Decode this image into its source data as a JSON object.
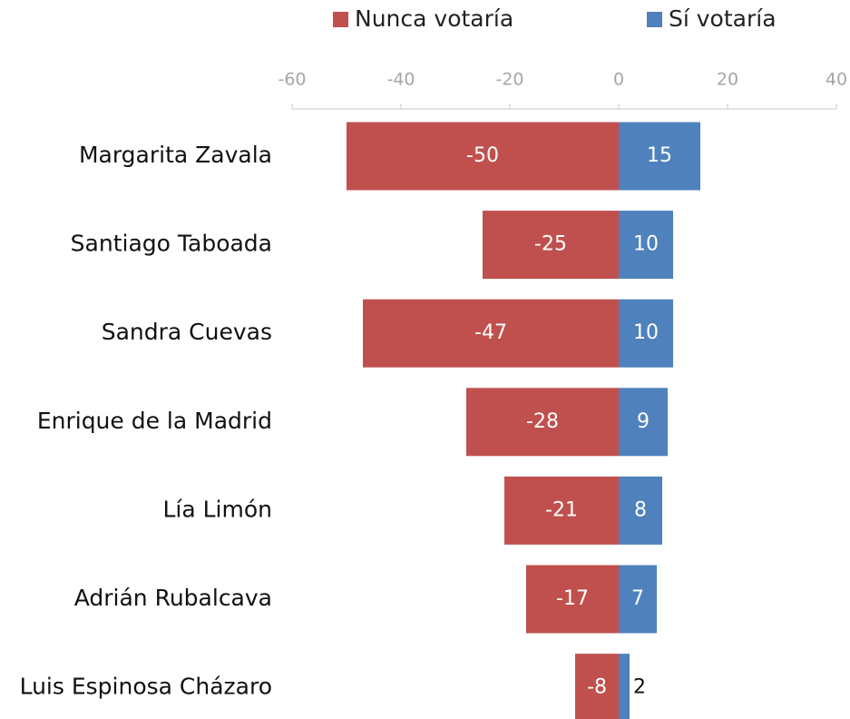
{
  "chart_data": {
    "type": "bar",
    "orientation": "horizontal",
    "categories": [
      "Margarita Zavala",
      "Santiago Taboada",
      "Sandra Cuevas",
      "Enrique de la Madrid",
      "Lía Limón",
      "Adrián Rubalcava",
      "Luis Espinosa Cházaro"
    ],
    "series": [
      {
        "name": "Nunca votaría",
        "color": "#c0504d",
        "values": [
          -50,
          -25,
          -47,
          -28,
          -21,
          -17,
          -8
        ]
      },
      {
        "name": "Sí votaría",
        "color": "#4f81bd",
        "values": [
          15,
          10,
          10,
          9,
          8,
          7,
          2
        ]
      }
    ],
    "xlim": [
      -60,
      40
    ],
    "xticks": [
      -60,
      -40,
      -20,
      0,
      20,
      40
    ],
    "legend": "top",
    "grid": false
  }
}
